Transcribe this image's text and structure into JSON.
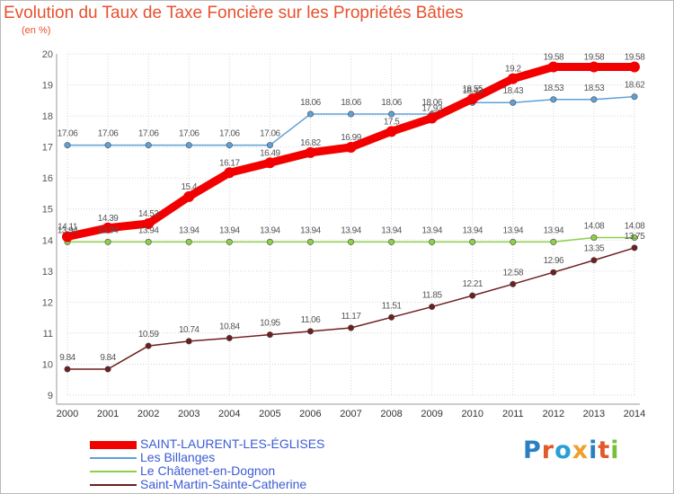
{
  "header": {
    "title": "Evolution du Taux de Taxe Foncière sur les Propriétés Bâties",
    "unit": "(en %)"
  },
  "logo": {
    "text": "Proxiti",
    "colors": [
      "#2a7fc2",
      "#e05a2a",
      "#2a9fd6",
      "#f0a030",
      "#2a7fc2",
      "#e05a2a",
      "#7abf3a"
    ]
  },
  "chart_data": {
    "type": "line",
    "title": "Evolution du Taux de Taxe Foncière sur les Propriétés Bâties",
    "xlabel": "",
    "ylabel": "(en %)",
    "x": [
      "2000",
      "2001",
      "2002",
      "2003",
      "2004",
      "2005",
      "2006",
      "2007",
      "2008",
      "2009",
      "2010",
      "2011",
      "2012",
      "2013",
      "2014"
    ],
    "ylim": [
      9,
      20
    ],
    "yticks": [
      9,
      10,
      11,
      12,
      13,
      14,
      15,
      16,
      17,
      18,
      19,
      20
    ],
    "grid": true,
    "legend_position": "bottom",
    "series": [
      {
        "name": "SAINT-LAURENT-LES-ÉGLISES",
        "color": "#f20000",
        "values": [
          14.11,
          14.39,
          14.53,
          15.4,
          16.17,
          16.49,
          16.82,
          16.99,
          17.5,
          17.93,
          18.55,
          19.2,
          19.58,
          19.58,
          19.58
        ],
        "labels": [
          "14.11",
          "14.39",
          "14.53",
          "15.4",
          "16.17",
          "16.49",
          "16.82",
          "16.99",
          "17.5",
          "17.93",
          "18.55",
          "19.2",
          "19.58",
          "19.58",
          "19.58"
        ]
      },
      {
        "name": "Les Billanges",
        "color": "#5fa0d8",
        "values": [
          17.06,
          17.06,
          17.06,
          17.06,
          17.06,
          17.06,
          18.06,
          18.06,
          18.06,
          18.06,
          18.43,
          18.43,
          18.53,
          18.53,
          18.62
        ],
        "labels": [
          "17.06",
          "17.06",
          "17.06",
          "17.06",
          "17.06",
          "17.06",
          "18.06",
          "18.06",
          "18.06",
          "18.06",
          "18.43",
          "18.43",
          "18.53",
          "18.53",
          "18.62"
        ]
      },
      {
        "name": "Le Châtenet-en-Dognon",
        "color": "#8ed04a",
        "values": [
          13.94,
          13.94,
          13.94,
          13.94,
          13.94,
          13.94,
          13.94,
          13.94,
          13.94,
          13.94,
          13.94,
          13.94,
          13.94,
          14.08,
          14.08
        ],
        "labels": [
          "13.94",
          "13.94",
          "13.94",
          "13.94",
          "13.94",
          "13.94",
          "13.94",
          "13.94",
          "13.94",
          "13.94",
          "13.94",
          "13.94",
          "13.94",
          "14.08",
          "14.08"
        ]
      },
      {
        "name": "Saint-Martin-Sainte-Catherine",
        "color": "#6e1e1e",
        "values": [
          9.84,
          9.84,
          10.59,
          10.74,
          10.84,
          10.95,
          11.06,
          11.17,
          11.51,
          11.85,
          12.21,
          12.58,
          12.96,
          13.35,
          13.75
        ],
        "labels": [
          "9.84",
          "9.84",
          "10.59",
          "10.74",
          "10.84",
          "10.95",
          "11.06",
          "11.17",
          "11.51",
          "11.85",
          "12.21",
          "12.58",
          "12.96",
          "13.35",
          "13.75"
        ]
      }
    ]
  }
}
